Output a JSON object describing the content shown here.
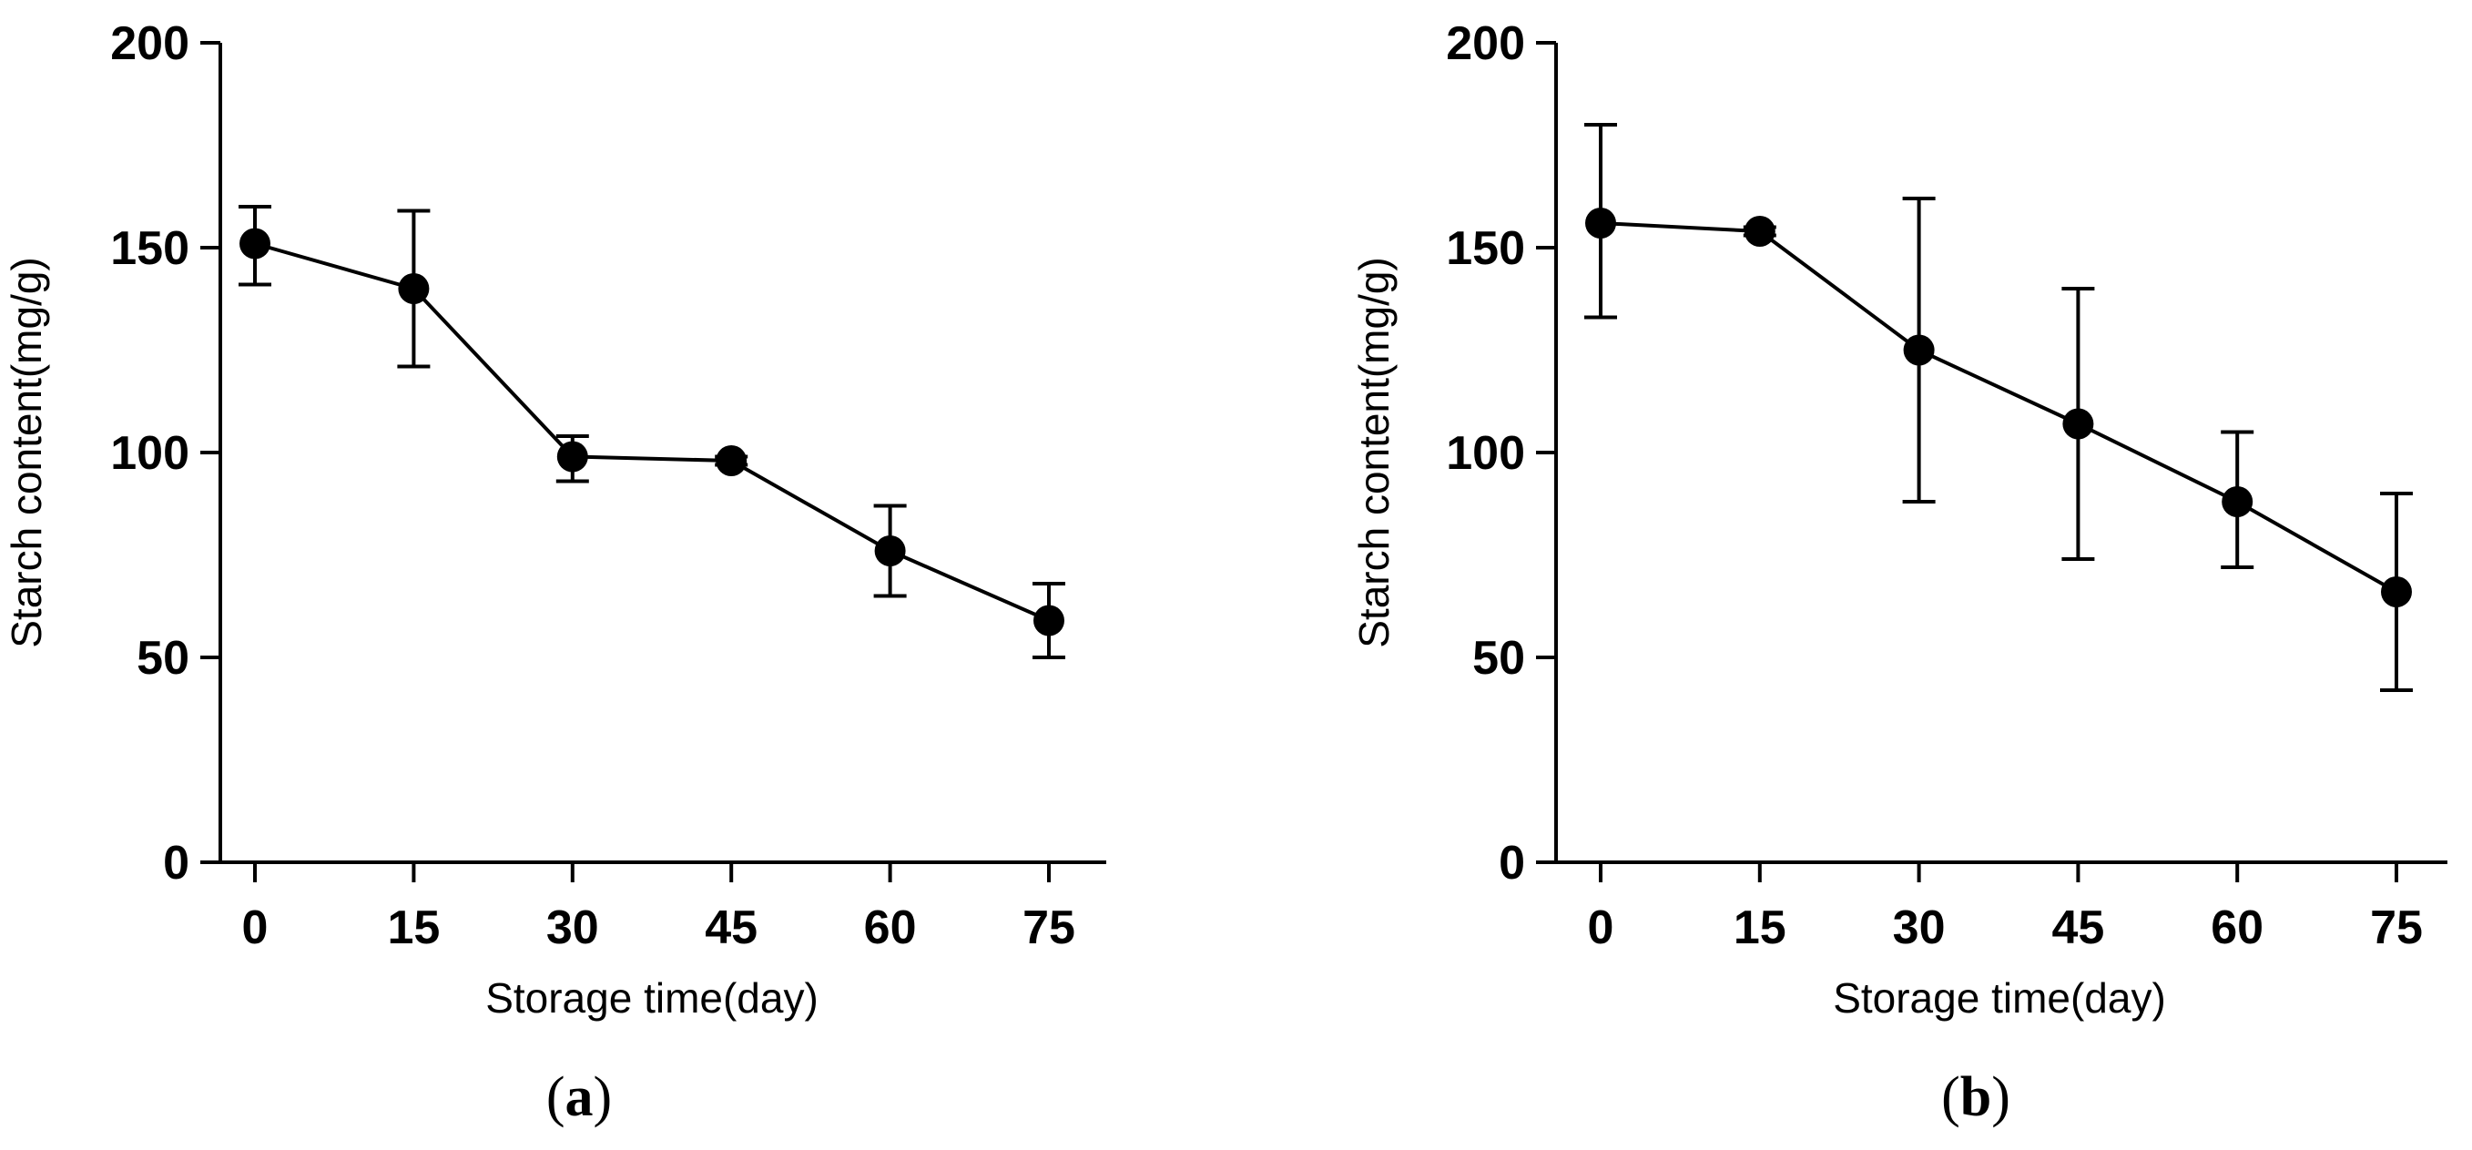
{
  "chart_data": [
    {
      "type": "line",
      "panel_label": "a",
      "title": "",
      "xlabel": "Storage time(day)",
      "ylabel": "Starch content(mg/g)",
      "x": [
        0,
        15,
        30,
        45,
        60,
        75
      ],
      "xticks": [
        "0",
        "15",
        "30",
        "45",
        "60",
        "75"
      ],
      "yticks": [
        "0",
        "50",
        "100",
        "150",
        "200"
      ],
      "ylim": [
        0,
        200
      ],
      "series": [
        {
          "name": "Starch content",
          "values": [
            151,
            140,
            99,
            98,
            76,
            59
          ],
          "error_upper": [
            160,
            159,
            104,
            99,
            87,
            68
          ],
          "error_lower": [
            141,
            121,
            93,
            97,
            65,
            50
          ]
        }
      ],
      "grid": false,
      "legend": "none"
    },
    {
      "type": "line",
      "panel_label": "b",
      "title": "",
      "xlabel": "Storage time(day)",
      "ylabel": "Starch content(mg/g)",
      "x": [
        0,
        15,
        30,
        45,
        60,
        75
      ],
      "xticks": [
        "0",
        "15",
        "30",
        "45",
        "60",
        "75"
      ],
      "yticks": [
        "0",
        "50",
        "100",
        "150",
        "200"
      ],
      "ylim": [
        0,
        200
      ],
      "series": [
        {
          "name": "Starch content",
          "values": [
            156,
            154,
            125,
            107,
            88,
            66
          ],
          "error_upper": [
            180,
            155,
            162,
            140,
            105,
            90
          ],
          "error_lower": [
            133,
            153,
            88,
            74,
            72,
            42
          ]
        }
      ],
      "grid": false,
      "legend": "none"
    }
  ]
}
